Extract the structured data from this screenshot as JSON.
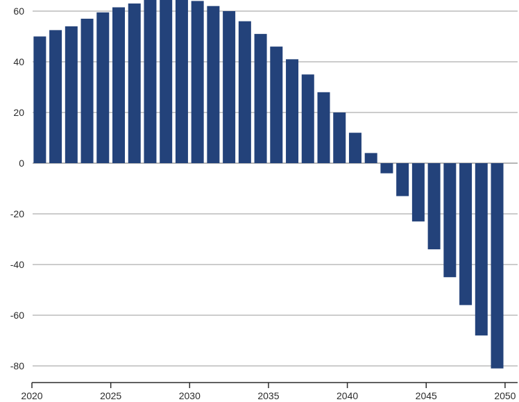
{
  "chart_data": {
    "type": "bar",
    "title": "",
    "xlabel": "",
    "ylabel": "",
    "bar_color": "#23427a",
    "ylim": [
      -84,
      64
    ],
    "y_ticks": [
      60,
      40,
      20,
      0,
      -20,
      -40,
      -60,
      -80
    ],
    "y_tick_labels": [
      "60",
      "40",
      "20",
      "0",
      "-20",
      "-40",
      "-60",
      "-80"
    ],
    "x_ticks": [
      2020,
      2025,
      2030,
      2035,
      2040,
      2045,
      2050
    ],
    "x_tick_labels": [
      "2020",
      "2025",
      "2030",
      "2035",
      "2040",
      "2045",
      "2050"
    ],
    "xlim": [
      2020,
      2050
    ],
    "grid": true,
    "x": [
      2021,
      2022,
      2023,
      2024,
      2025,
      2026,
      2027,
      2028,
      2029,
      2030,
      2031,
      2032,
      2033,
      2034,
      2035,
      2036,
      2037,
      2038,
      2039,
      2040,
      2041,
      2042,
      2043,
      2044,
      2045,
      2046,
      2047,
      2048,
      2049,
      2050
    ],
    "values": [
      50,
      52.5,
      54,
      57,
      59.5,
      61.5,
      63,
      64.5,
      64.5,
      64.5,
      64,
      62,
      60,
      56,
      51,
      46,
      41,
      35,
      28,
      20,
      12,
      4,
      -4,
      -13,
      -23,
      -34,
      -45,
      -56,
      -68,
      -81
    ]
  }
}
